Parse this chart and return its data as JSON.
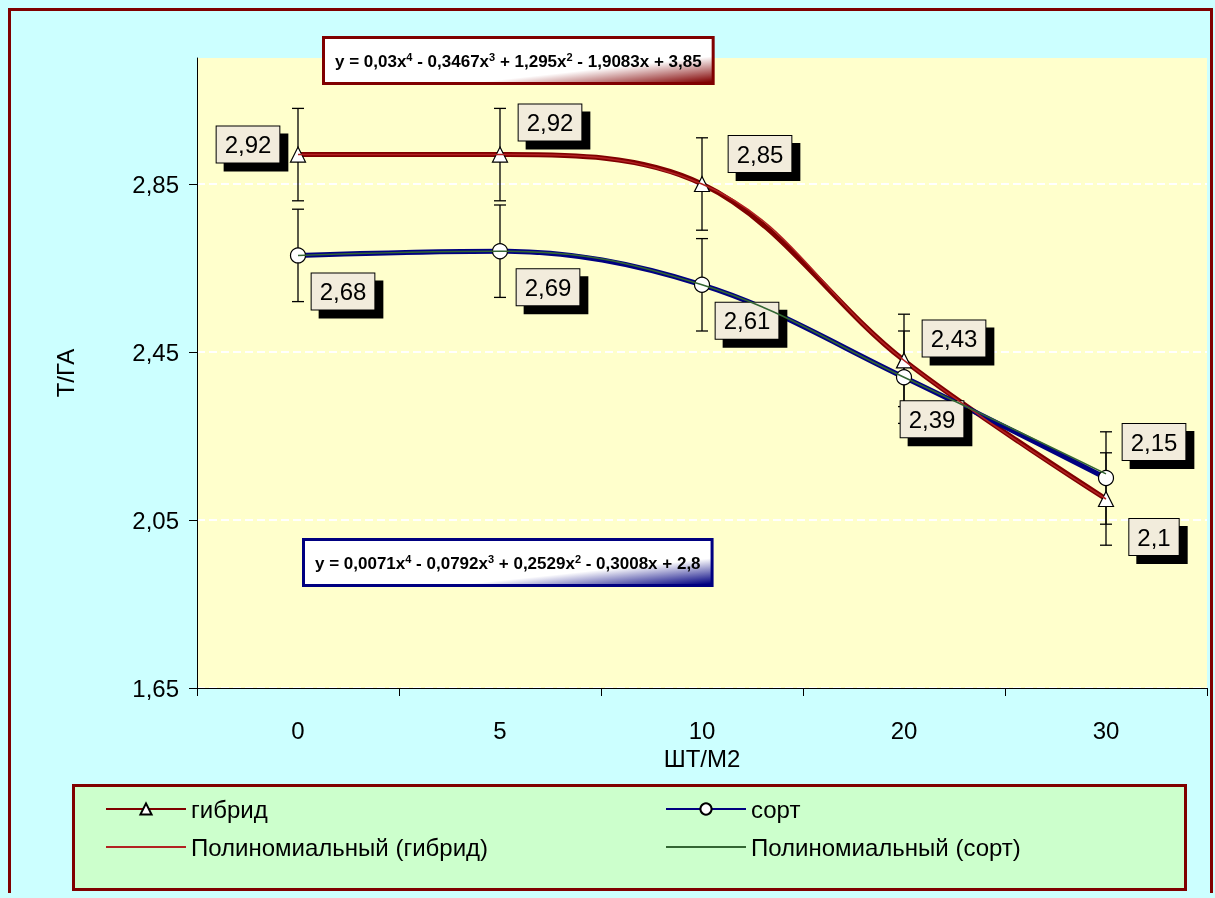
{
  "chart_data": {
    "type": "line",
    "xlabel": "ШТ/М2",
    "ylabel": "Т/ГА",
    "categories": [
      "0",
      "5",
      "10",
      "20",
      "30"
    ],
    "ylim": [
      1.65,
      3.15
    ],
    "yticks": [
      {
        "value": 1.65,
        "label": "1,65"
      },
      {
        "value": 2.05,
        "label": "2,05"
      },
      {
        "value": 2.45,
        "label": "2,45"
      },
      {
        "value": 2.85,
        "label": "2,85"
      }
    ],
    "grid": "y",
    "legend": "bottom",
    "annotations": [
      "y = 0,03x$^{4}$ - 0,3467x$^{3}$ + 1,295x$^{2}$ - 1,9083x + 3,85",
      "y = 0,0071x$^{4}$ - 0,0792x$^{3}$ + 0,2529x$^{2}$ - 0,3008x + 2,8"
    ],
    "series": [
      {
        "name": "гибрид",
        "color": "#800000",
        "marker": "triangle",
        "values": [
          2.92,
          2.92,
          2.85,
          2.43,
          2.1
        ],
        "errors": [
          0.11,
          0.11,
          0.11,
          0.11,
          0.11
        ],
        "value_labels": [
          "2,92",
          "2,92",
          "2,85",
          "2,43",
          "2,1"
        ]
      },
      {
        "name": "сорт",
        "color": "#000080",
        "marker": "circle",
        "values": [
          2.68,
          2.69,
          2.61,
          2.39,
          2.15
        ],
        "errors": [
          0.11,
          0.11,
          0.11,
          0.11,
          0.11
        ],
        "value_labels": [
          "2,68",
          "2,69",
          "2,61",
          "2,39",
          "2,15"
        ]
      },
      {
        "name": "Полиномиальный (гибрид)",
        "type": "line",
        "color": "#b22222",
        "marker": "none",
        "values": [
          2.92,
          2.92,
          2.85,
          2.43,
          2.1
        ]
      },
      {
        "name": "Полиномиальный (сорт)",
        "type": "line",
        "color": "#336633",
        "marker": "none",
        "values": [
          2.68,
          2.69,
          2.61,
          2.39,
          2.16
        ]
      }
    ]
  }
}
